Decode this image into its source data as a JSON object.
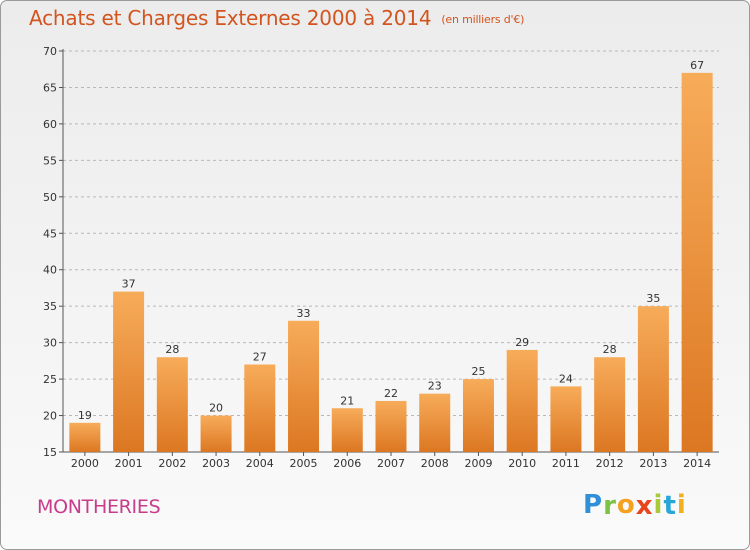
{
  "header": {
    "title": "Achats et Charges Externes 2000 à 2014",
    "subtitle": "(en milliers d'€)"
  },
  "footer": {
    "commune": "MONTHERIES",
    "logo_letters": [
      "P",
      "r",
      "o",
      "x",
      "i",
      "t",
      "i"
    ],
    "logo_colors": [
      "#2f8fd8",
      "#7cc245",
      "#f3a11e",
      "#e8451e",
      "#a9c83a",
      "#28a6d8",
      "#f0b020"
    ]
  },
  "colors": {
    "title": "#d2541e",
    "commune": "#c83c8c",
    "bar_light": "#f6aa58",
    "bar_dark": "#dd7a24",
    "grid": "#b8b8b8"
  },
  "chart_data": {
    "type": "bar",
    "categories": [
      "2000",
      "2001",
      "2002",
      "2003",
      "2004",
      "2005",
      "2006",
      "2007",
      "2008",
      "2009",
      "2010",
      "2011",
      "2012",
      "2013",
      "2014"
    ],
    "values": [
      19,
      37,
      28,
      20,
      27,
      33,
      21,
      22,
      23,
      25,
      29,
      24,
      28,
      35,
      67
    ],
    "ylim": [
      15,
      70
    ],
    "yticks": [
      15,
      20,
      25,
      30,
      35,
      40,
      45,
      50,
      55,
      60,
      65,
      70
    ],
    "grid": "dashed horizontal",
    "data_labels": true
  }
}
